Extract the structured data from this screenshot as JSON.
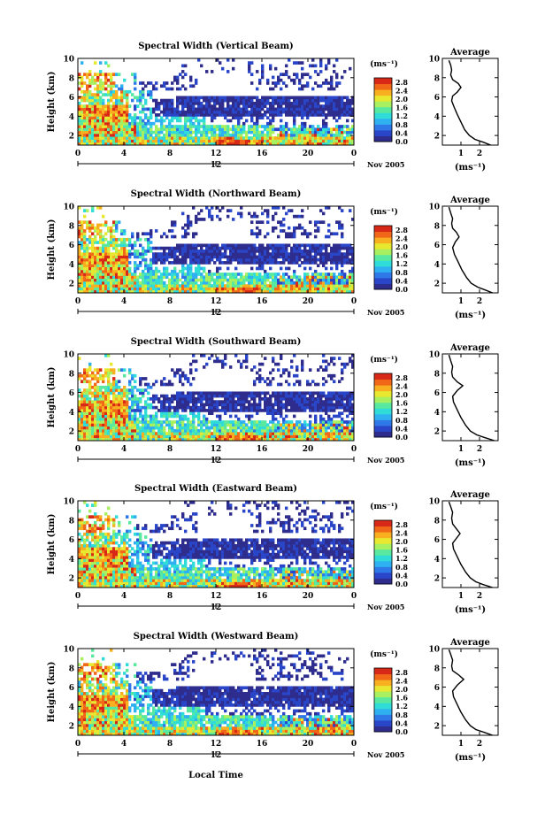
{
  "chart_data": {
    "type": "heatmap",
    "panels": [
      {
        "title": "Spectral Width (Vertical Beam)",
        "beam": "vertical",
        "avg_profile": [
          [
            2.6,
            1
          ],
          [
            2.2,
            1.3
          ],
          [
            1.75,
            1.6
          ],
          [
            1.45,
            2
          ],
          [
            1.2,
            2.6
          ],
          [
            1.0,
            3.4
          ],
          [
            0.8,
            4.2
          ],
          [
            0.62,
            5
          ],
          [
            0.5,
            5.6
          ],
          [
            0.55,
            6.1
          ],
          [
            0.8,
            6.5
          ],
          [
            1.0,
            7
          ],
          [
            0.85,
            7.4
          ],
          [
            0.55,
            7.8
          ],
          [
            0.45,
            8.3
          ],
          [
            0.5,
            8.8
          ],
          [
            0.45,
            9.3
          ],
          [
            0.35,
            9.8
          ]
        ],
        "avg_xticks": [
          "1",
          "2"
        ]
      },
      {
        "title": "Spectral Width (Northward Beam)",
        "beam": "northward",
        "avg_profile": [
          [
            2.7,
            1
          ],
          [
            2.3,
            1.3
          ],
          [
            1.9,
            1.6
          ],
          [
            1.55,
            2
          ],
          [
            1.3,
            2.6
          ],
          [
            1.05,
            3.4
          ],
          [
            0.85,
            4.2
          ],
          [
            0.65,
            5
          ],
          [
            0.55,
            5.7
          ],
          [
            0.7,
            6.3
          ],
          [
            0.9,
            6.8
          ],
          [
            0.75,
            7.3
          ],
          [
            0.55,
            7.7
          ],
          [
            0.5,
            8.2
          ],
          [
            0.55,
            8.7
          ],
          [
            0.45,
            9.3
          ],
          [
            0.35,
            9.9
          ]
        ],
        "avg_xticks": [
          "1",
          "2"
        ]
      },
      {
        "title": "Spectral Width (Southward Beam)",
        "beam": "southward",
        "avg_profile": [
          [
            2.8,
            1
          ],
          [
            2.3,
            1.3
          ],
          [
            1.85,
            1.6
          ],
          [
            1.5,
            2
          ],
          [
            1.25,
            2.6
          ],
          [
            1.0,
            3.4
          ],
          [
            0.8,
            4.2
          ],
          [
            0.6,
            5
          ],
          [
            0.55,
            5.6
          ],
          [
            0.8,
            6.2
          ],
          [
            1.1,
            6.7
          ],
          [
            0.8,
            7.1
          ],
          [
            0.55,
            7.6
          ],
          [
            0.5,
            8.1
          ],
          [
            0.55,
            8.7
          ],
          [
            0.45,
            9.3
          ],
          [
            0.35,
            9.9
          ]
        ],
        "avg_xticks": [
          "1",
          "2"
        ]
      },
      {
        "title": "Spectral Width (Eastward Beam)",
        "beam": "eastward",
        "avg_profile": [
          [
            2.7,
            1
          ],
          [
            2.2,
            1.3
          ],
          [
            1.8,
            1.6
          ],
          [
            1.5,
            2
          ],
          [
            1.25,
            2.6
          ],
          [
            1.0,
            3.4
          ],
          [
            0.8,
            4.2
          ],
          [
            0.6,
            5
          ],
          [
            0.55,
            5.6
          ],
          [
            0.75,
            6.1
          ],
          [
            0.95,
            6.6
          ],
          [
            0.75,
            7.1
          ],
          [
            0.55,
            7.6
          ],
          [
            0.5,
            8.2
          ],
          [
            0.55,
            8.8
          ],
          [
            0.45,
            9.4
          ],
          [
            0.35,
            9.9
          ]
        ],
        "avg_xticks": [
          "1",
          "2"
        ]
      },
      {
        "title": "Spectral Width (Westward Beam)",
        "beam": "westward",
        "avg_profile": [
          [
            2.7,
            1
          ],
          [
            2.25,
            1.3
          ],
          [
            1.8,
            1.6
          ],
          [
            1.5,
            2
          ],
          [
            1.25,
            2.6
          ],
          [
            1.0,
            3.4
          ],
          [
            0.8,
            4.2
          ],
          [
            0.6,
            5
          ],
          [
            0.55,
            5.6
          ],
          [
            0.8,
            6.2
          ],
          [
            1.15,
            6.8
          ],
          [
            0.85,
            7.3
          ],
          [
            0.55,
            7.7
          ],
          [
            0.5,
            8.2
          ],
          [
            0.55,
            8.8
          ],
          [
            0.45,
            9.4
          ],
          [
            0.35,
            9.9
          ]
        ],
        "avg_xticks": [
          "1",
          "2"
        ]
      }
    ],
    "ylabel": "Height (km)",
    "xlabel": "Local Time",
    "x_range": [
      0,
      24
    ],
    "y_range": [
      1,
      10
    ],
    "x_ticks": [
      "0",
      "4",
      "8",
      "12",
      "16",
      "20",
      "0"
    ],
    "y_ticks": [
      "2",
      "4",
      "6",
      "8",
      "10"
    ],
    "date_tick": "12",
    "date_label": "Nov 2005",
    "colorbar_unit": "(ms⁻¹)",
    "colorbar_ticks": [
      "0.0",
      "0.4",
      "0.8",
      "1.2",
      "1.6",
      "2.0",
      "2.4",
      "2.8"
    ],
    "colorbar_range": [
      0,
      3.0
    ],
    "colorscale": [
      "#2e2c8c",
      "#2a46c8",
      "#2f78e8",
      "#2fb0f0",
      "#30dcd8",
      "#58e8a0",
      "#a8f060",
      "#e8e830",
      "#f8b020",
      "#f06818",
      "#d82818"
    ],
    "avg_title": "Average",
    "avg_xlabel": "(ms⁻¹)",
    "avg_x_range": [
      0,
      3
    ],
    "avg_y_ticks": [
      "2",
      "4",
      "6",
      "8",
      "10"
    ]
  }
}
